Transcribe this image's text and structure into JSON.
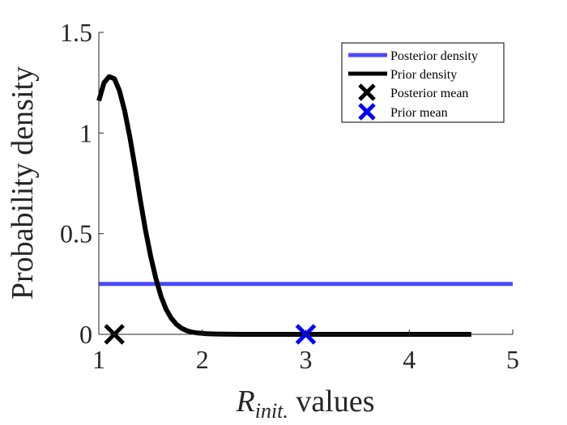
{
  "chart_data": {
    "type": "line",
    "xlabel_symbol": "R",
    "xlabel_subscript": "init.",
    "xlabel_suffix": " values",
    "ylabel": "Probability density",
    "xlim": [
      1,
      5
    ],
    "ylim": [
      0,
      1.5
    ],
    "x_ticks": [
      1,
      2,
      3,
      4,
      5
    ],
    "y_ticks": [
      0,
      0.5,
      1,
      1.5
    ],
    "legend_position": "top-right",
    "series": [
      {
        "name": "Posterior density",
        "kind": "line",
        "color": "#4a4aff",
        "x": [
          1,
          5
        ],
        "y": [
          0.25,
          0.25
        ]
      },
      {
        "name": "Prior density",
        "kind": "line",
        "color": "#000000",
        "x": [
          1.0,
          1.05,
          1.1,
          1.15,
          1.2,
          1.25,
          1.3,
          1.35,
          1.4,
          1.45,
          1.5,
          1.55,
          1.6,
          1.65,
          1.7,
          1.75,
          1.8,
          1.85,
          1.9,
          1.95,
          2.0,
          2.05,
          2.1,
          2.2,
          2.3,
          2.4,
          2.6,
          3.0,
          3.5,
          4.0,
          4.6
        ],
        "y": [
          1.16,
          1.25,
          1.28,
          1.27,
          1.21,
          1.11,
          0.98,
          0.83,
          0.67,
          0.52,
          0.39,
          0.28,
          0.19,
          0.125,
          0.08,
          0.05,
          0.03,
          0.018,
          0.011,
          0.007,
          0.005,
          0.003,
          0.002,
          0.001,
          0.0005,
          0.0002,
          0.0,
          0.0,
          0.0,
          0.0,
          0.0
        ]
      },
      {
        "name": "Posterior mean",
        "kind": "marker",
        "color": "#000000",
        "x": [
          1.15
        ],
        "y": [
          0
        ]
      },
      {
        "name": "Prior mean",
        "kind": "marker",
        "color": "#0000ff",
        "x": [
          3.0
        ],
        "y": [
          0
        ]
      }
    ]
  }
}
